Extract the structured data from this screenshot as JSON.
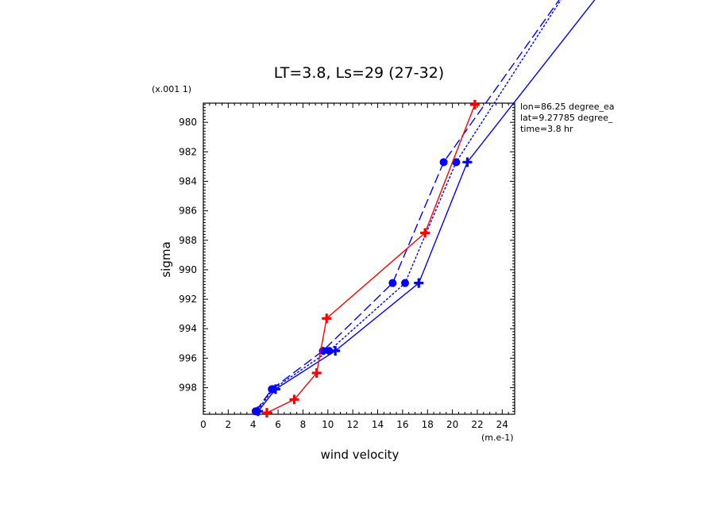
{
  "chart_data": {
    "type": "line",
    "title": "LT=3.8, Ls=29 (27-32)",
    "xlabel": "wind velocity",
    "ylabel": "sigma",
    "x_unit": "(m.e-1)",
    "y_unit": "(x.001 1)",
    "xlim": [
      0,
      25
    ],
    "ylim": [
      999.8,
      978.7
    ],
    "x_ticks": [
      "0",
      "2",
      "4",
      "6",
      "8",
      "10",
      "12",
      "14",
      "16",
      "18",
      "20",
      "22",
      "24"
    ],
    "y_ticks": [
      "980",
      "982",
      "984",
      "986",
      "988",
      "990",
      "992",
      "994",
      "996",
      "998"
    ],
    "info": [
      "lon=86.25 degree_ea",
      "lat=9.27785 degree_",
      "time=3.8 hr"
    ],
    "colors": {
      "blue": "#0000ff",
      "red": "#ff0000"
    },
    "grid": false,
    "series": [
      {
        "color": "#0000ff",
        "style": "solid",
        "marker": "plus",
        "x": [
          33,
          21.2,
          17.3,
          10.6,
          5.8,
          4.4
        ],
        "y": [
          970.0,
          982.7,
          990.9,
          995.5,
          998.1,
          999.6
        ],
        "marked": [
          false,
          true,
          true,
          true,
          true,
          true
        ]
      },
      {
        "color": "#0000ff",
        "style": "dashed",
        "marker": "circle",
        "x": [
          30,
          20.3,
          16.2,
          10.1,
          5.6,
          4.3
        ],
        "y": [
          970.0,
          982.7,
          990.9,
          995.5,
          998.1,
          999.6
        ],
        "marked": [
          false,
          true,
          true,
          true,
          true,
          true
        ]
      },
      {
        "color": "#0000ff",
        "style": "longdash",
        "marker": "circle",
        "x": [
          30,
          19.3,
          15.2,
          9.6,
          5.5,
          4.2
        ],
        "y": [
          970.0,
          982.7,
          990.9,
          995.5,
          998.1,
          999.6
        ],
        "marked": [
          false,
          true,
          true,
          true,
          true,
          true
        ]
      },
      {
        "color": "#ff0000",
        "style": "solid",
        "marker": "plus",
        "x": [
          21.8,
          17.8,
          9.9,
          9.1,
          7.3,
          5.1
        ],
        "y": [
          978.8,
          987.5,
          993.3,
          997.0,
          998.8,
          999.7
        ],
        "marked": [
          true,
          true,
          true,
          true,
          true,
          true
        ]
      }
    ]
  }
}
